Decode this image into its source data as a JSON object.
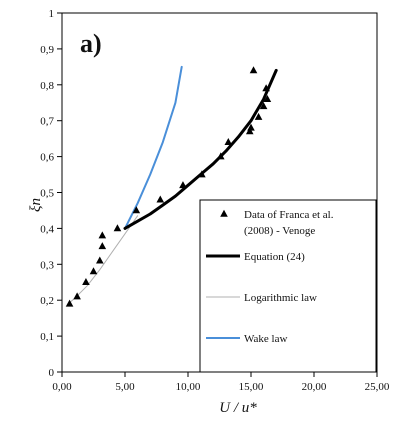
{
  "chart_data": {
    "type": "scatter",
    "panel_label": "a)",
    "xlabel": "U / u*",
    "ylabel": "ξn",
    "xlim": [
      0,
      25
    ],
    "ylim": [
      0,
      1
    ],
    "x_ticks": [
      0,
      5,
      10,
      15,
      20,
      25
    ],
    "x_tick_labels": [
      "0,00",
      "5,00",
      "10,00",
      "15,00",
      "20,00",
      "25,00"
    ],
    "y_ticks": [
      0,
      0.1,
      0.2,
      0.3,
      0.4,
      0.5,
      0.6,
      0.7,
      0.8,
      0.9,
      1
    ],
    "y_tick_labels": [
      "0",
      "0,1",
      "0,2",
      "0,3",
      "0,4",
      "0,5",
      "0,6",
      "0,7",
      "0,8",
      "0,9",
      "1"
    ],
    "grid": false,
    "legend_position": "bottom-right",
    "series": [
      {
        "name": "Data of Franca et al. (2008) - Venoge",
        "kind": "scatter",
        "marker": "triangle",
        "color": "#000000",
        "points": [
          [
            0.6,
            0.19
          ],
          [
            1.2,
            0.21
          ],
          [
            1.9,
            0.25
          ],
          [
            2.5,
            0.28
          ],
          [
            3.0,
            0.31
          ],
          [
            3.2,
            0.35
          ],
          [
            3.2,
            0.38
          ],
          [
            4.4,
            0.4
          ],
          [
            5.9,
            0.45
          ],
          [
            7.8,
            0.48
          ],
          [
            9.6,
            0.52
          ],
          [
            11.1,
            0.55
          ],
          [
            12.6,
            0.6
          ],
          [
            13.2,
            0.64
          ],
          [
            14.9,
            0.67
          ],
          [
            15.0,
            0.68
          ],
          [
            15.6,
            0.71
          ],
          [
            16.0,
            0.74
          ],
          [
            16.3,
            0.76
          ],
          [
            16.2,
            0.79
          ],
          [
            15.2,
            0.84
          ]
        ]
      },
      {
        "name": "Equation (24)",
        "kind": "line",
        "color": "#000000",
        "width": "thick",
        "points": [
          [
            5.0,
            0.4
          ],
          [
            6.0,
            0.42
          ],
          [
            7.0,
            0.44
          ],
          [
            8.0,
            0.465
          ],
          [
            9.0,
            0.49
          ],
          [
            10.0,
            0.52
          ],
          [
            11.0,
            0.55
          ],
          [
            12.0,
            0.58
          ],
          [
            13.0,
            0.615
          ],
          [
            14.0,
            0.655
          ],
          [
            15.0,
            0.7
          ],
          [
            16.0,
            0.76
          ],
          [
            17.0,
            0.84
          ]
        ]
      },
      {
        "name": "Logarithmic law",
        "kind": "line",
        "color": "#b0b0b0",
        "width": "thin",
        "points": [
          [
            0.5,
            0.19
          ],
          [
            1.0,
            0.205
          ],
          [
            2.0,
            0.24
          ],
          [
            3.0,
            0.285
          ],
          [
            4.0,
            0.335
          ],
          [
            5.0,
            0.385
          ],
          [
            6.0,
            0.435
          ]
        ]
      },
      {
        "name": "Wake law",
        "kind": "line",
        "color": "#4a8fd9",
        "width": "medium",
        "points": [
          [
            5.0,
            0.4
          ],
          [
            6.0,
            0.47
          ],
          [
            7.0,
            0.55
          ],
          [
            8.0,
            0.64
          ],
          [
            9.0,
            0.75
          ],
          [
            9.5,
            0.85
          ]
        ]
      }
    ],
    "legend": [
      {
        "label_lines": [
          "Data of Franca et al.",
          "(2008) - Venoge"
        ],
        "series_index": 0
      },
      {
        "label_lines": [
          "Equation (24)"
        ],
        "series_index": 1
      },
      {
        "label_lines": [
          "Logarithmic law"
        ],
        "series_index": 2
      },
      {
        "label_lines": [
          "Wake law"
        ],
        "series_index": 3
      }
    ]
  }
}
